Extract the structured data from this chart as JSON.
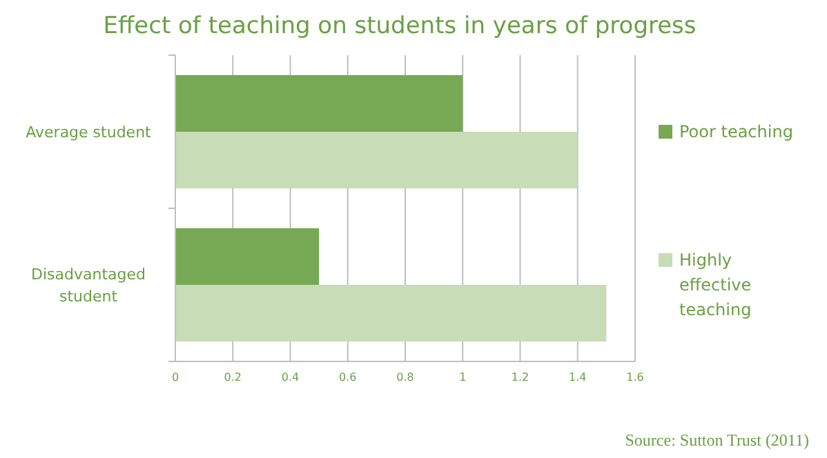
{
  "chart_data": {
    "type": "bar",
    "orientation": "horizontal",
    "title": "Effect of teaching on students in years of progress",
    "categories": [
      "Average student",
      "Disadvantaged student"
    ],
    "series": [
      {
        "name": "Poor teaching",
        "color": "#77a853",
        "values": [
          1,
          0.5
        ]
      },
      {
        "name": "Highly effective teaching",
        "color": "#c8dcb8",
        "values": [
          1.4,
          1.5
        ]
      }
    ],
    "xlim": [
      0,
      1.6
    ],
    "xticks": [
      0,
      0.2,
      0.4,
      0.6,
      0.8,
      1,
      1.2,
      1.4,
      1.6
    ],
    "grid": "x",
    "legend": "right",
    "annotations": [
      "Source: Sutton Trust (2011)"
    ]
  }
}
